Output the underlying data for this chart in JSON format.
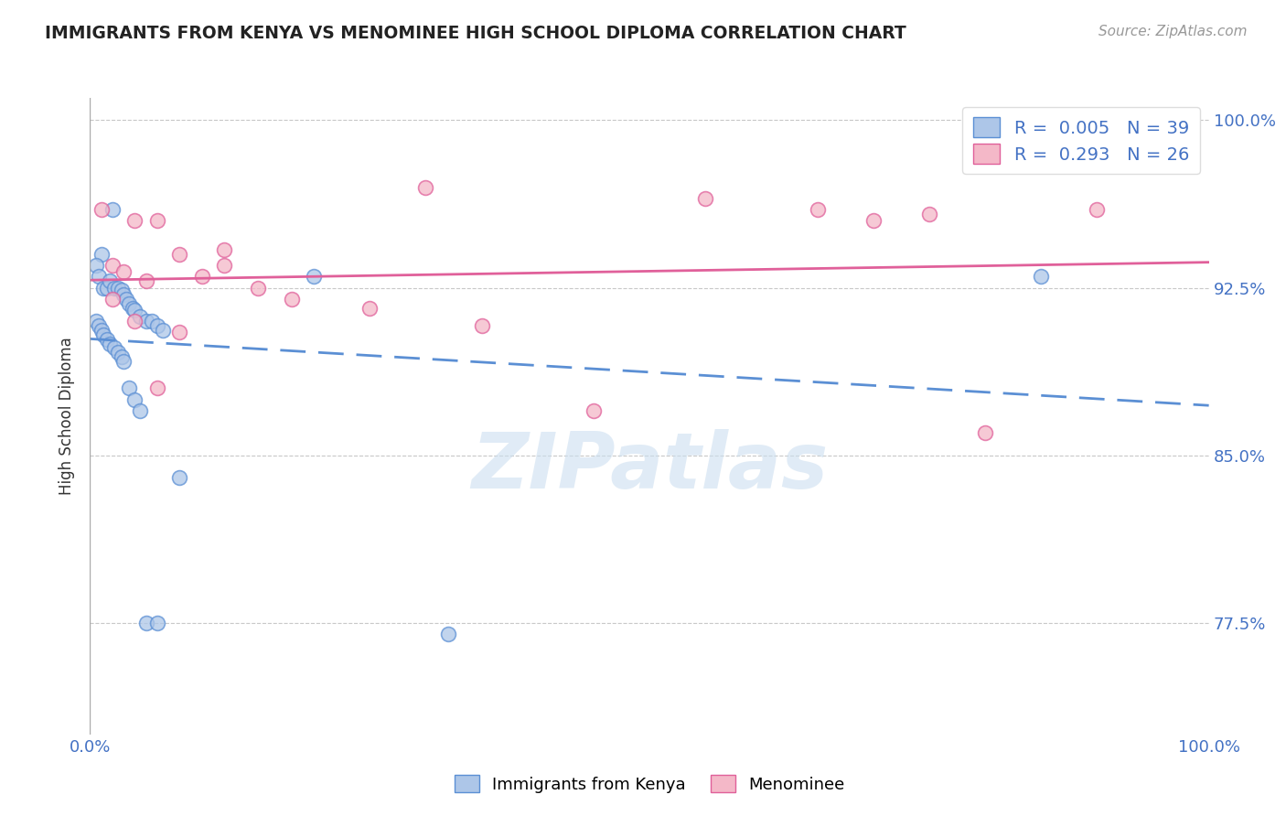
{
  "title": "IMMIGRANTS FROM KENYA VS MENOMINEE HIGH SCHOOL DIPLOMA CORRELATION CHART",
  "source_text": "Source: ZipAtlas.com",
  "ylabel": "High School Diploma",
  "x_min": 0.0,
  "x_max": 1.0,
  "y_min": 0.725,
  "y_max": 1.01,
  "y_ticks": [
    0.775,
    0.85,
    0.925,
    1.0
  ],
  "y_tick_labels": [
    "77.5%",
    "85.0%",
    "92.5%",
    "100.0%"
  ],
  "x_ticks": [
    0.0,
    1.0
  ],
  "x_tick_labels": [
    "0.0%",
    "100.0%"
  ],
  "blue_fill": "#adc6e8",
  "blue_edge": "#5b8fd4",
  "pink_fill": "#f4b8c8",
  "pink_edge": "#e0609a",
  "blue_line_color": "#5b8fd4",
  "pink_line_color": "#e0609a",
  "R_blue": 0.005,
  "N_blue": 39,
  "R_pink": 0.293,
  "N_pink": 26,
  "label_blue": "Immigrants from Kenya",
  "label_pink": "Menominee",
  "watermark": "ZIPatlas",
  "blue_x": [
    0.02,
    0.01,
    0.005,
    0.008,
    0.012,
    0.015,
    0.018,
    0.022,
    0.025,
    0.028,
    0.03,
    0.032,
    0.035,
    0.038,
    0.04,
    0.045,
    0.05,
    0.055,
    0.06,
    0.065,
    0.005,
    0.008,
    0.01,
    0.012,
    0.015,
    0.018,
    0.022,
    0.025,
    0.028,
    0.03,
    0.035,
    0.04,
    0.045,
    0.05,
    0.2,
    0.06,
    0.32,
    0.08,
    0.85
  ],
  "blue_y": [
    0.96,
    0.94,
    0.935,
    0.93,
    0.925,
    0.925,
    0.928,
    0.925,
    0.925,
    0.924,
    0.922,
    0.92,
    0.918,
    0.916,
    0.915,
    0.912,
    0.91,
    0.91,
    0.908,
    0.906,
    0.91,
    0.908,
    0.906,
    0.904,
    0.902,
    0.9,
    0.898,
    0.896,
    0.894,
    0.892,
    0.88,
    0.875,
    0.87,
    0.775,
    0.93,
    0.775,
    0.77,
    0.84,
    0.93
  ],
  "pink_x": [
    0.3,
    0.01,
    0.04,
    0.06,
    0.08,
    0.02,
    0.03,
    0.05,
    0.12,
    0.15,
    0.18,
    0.25,
    0.35,
    0.45,
    0.55,
    0.65,
    0.02,
    0.04,
    0.06,
    0.08,
    0.1,
    0.12,
    0.7,
    0.75,
    0.8,
    0.9
  ],
  "pink_y": [
    0.97,
    0.96,
    0.955,
    0.955,
    0.94,
    0.935,
    0.932,
    0.928,
    0.942,
    0.925,
    0.92,
    0.916,
    0.908,
    0.87,
    0.965,
    0.96,
    0.92,
    0.91,
    0.88,
    0.905,
    0.93,
    0.935,
    0.955,
    0.958,
    0.86,
    0.96
  ]
}
